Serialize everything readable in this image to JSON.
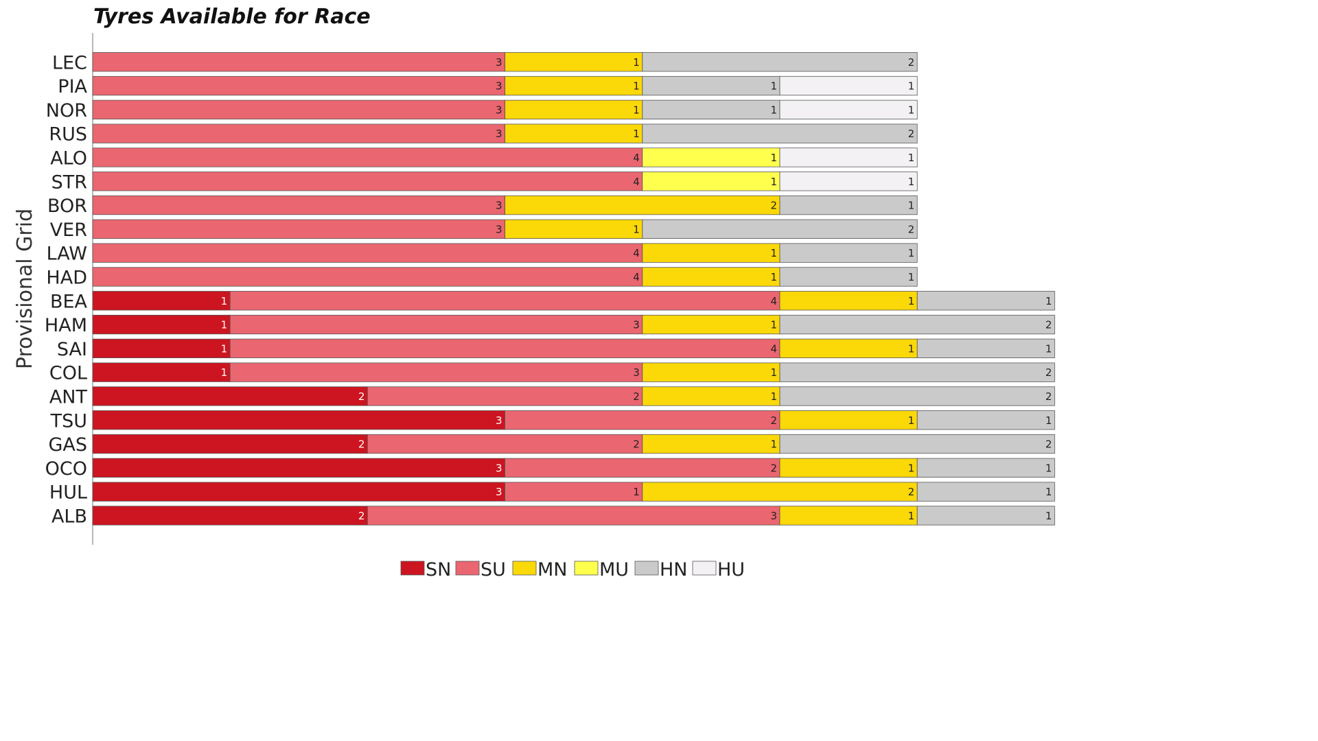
{
  "chart_data": {
    "type": "bar",
    "orientation": "horizontal",
    "stacked": true,
    "title": "Tyres Available for Race",
    "ylabel": "Provisional Grid",
    "xlabel": "",
    "categories": [
      "LEC",
      "PIA",
      "NOR",
      "RUS",
      "ALO",
      "STR",
      "BOR",
      "VER",
      "LAW",
      "HAD",
      "BEA",
      "HAM",
      "SAI",
      "COL",
      "ANT",
      "TSU",
      "GAS",
      "OCO",
      "HUL",
      "ALB"
    ],
    "series": [
      {
        "name": "SN",
        "color": "#cc1520",
        "label_color": "#ffffff",
        "values": [
          0,
          0,
          0,
          0,
          0,
          0,
          0,
          0,
          0,
          0,
          1,
          1,
          1,
          1,
          2,
          3,
          2,
          3,
          3,
          2
        ]
      },
      {
        "name": "SU",
        "color": "#ea6670",
        "label_color": "#222222",
        "values": [
          3,
          3,
          3,
          3,
          4,
          4,
          3,
          3,
          4,
          4,
          4,
          3,
          4,
          3,
          2,
          2,
          2,
          2,
          1,
          3
        ]
      },
      {
        "name": "MN",
        "color": "#fbd808",
        "label_color": "#222222",
        "values": [
          1,
          1,
          1,
          1,
          0,
          0,
          2,
          1,
          1,
          1,
          1,
          1,
          1,
          1,
          1,
          1,
          1,
          1,
          2,
          1
        ]
      },
      {
        "name": "MU",
        "color": "#ffff4e",
        "label_color": "#222222",
        "values": [
          0,
          0,
          0,
          0,
          1,
          1,
          0,
          0,
          0,
          0,
          0,
          0,
          0,
          0,
          0,
          0,
          0,
          0,
          0,
          0
        ]
      },
      {
        "name": "HN",
        "color": "#cacaca",
        "label_color": "#222222",
        "values": [
          2,
          1,
          1,
          2,
          0,
          0,
          1,
          2,
          1,
          1,
          1,
          2,
          1,
          2,
          2,
          1,
          2,
          1,
          1,
          1
        ]
      },
      {
        "name": "HU",
        "color": "#f3f1f4",
        "label_color": "#222222",
        "values": [
          0,
          1,
          1,
          0,
          1,
          1,
          0,
          0,
          0,
          0,
          0,
          0,
          0,
          0,
          0,
          0,
          0,
          0,
          0,
          0
        ]
      }
    ],
    "xlim": [
      0,
      7
    ],
    "grid": false,
    "legend_position": "bottom-center"
  }
}
